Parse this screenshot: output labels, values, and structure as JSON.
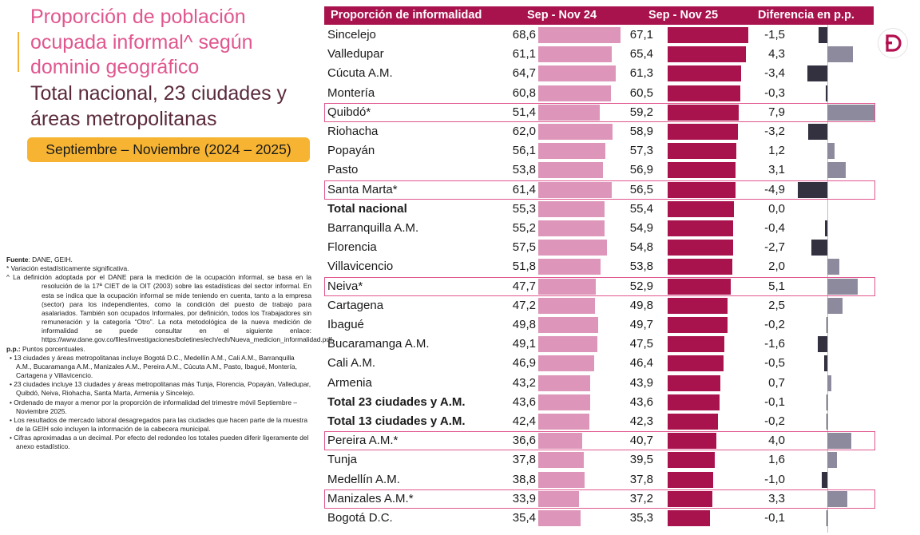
{
  "title": "Proporción de población ocupada informal^ según dominio geográfico",
  "subtitle": "Total nacional, 23 ciudades y áreas metropolitanas",
  "period": "Septiembre – Noviembre (2024 – 2025)",
  "colors": {
    "accent": "#a8124d",
    "bar_2024": "#dd96b9",
    "bar_2025": "#a8124d",
    "diff_positive": "#8c8a9c",
    "diff_negative": "#33313f",
    "title": "#e0578f",
    "period_bg": "#f6b432"
  },
  "logo_icon": "dane-logo-icon",
  "notes": {
    "source_label": "Fuente",
    "source_text": ": DANE, GEIH.",
    "significance": "* Variación estadísticamente significativa.",
    "definition": "^ La definición adoptada por el DANE para la medición de la ocupación informal, se basa en la resolución de la 17ª CIET de la OIT (2003) sobre las estadísticas del sector informal. En esta se indica que la ocupación informal se mide teniendo en cuenta, tanto a la empresa (sector) para los independientes, como la condición del puesto de trabajo para asalariados. También son ocupados Informales, por definición, todos los Trabajadores sin remuneración y la categoría “Otro”. La nota metodológica de la nueva medición de informalidad se puede consultar en el siguiente enlace: https://www.dane.gov.co/files/investigaciones/boletines/ech/ech/Nueva_medicion_informalidad.pdf",
    "pp_label": "p.p.:",
    "pp_text": " Puntos porcentuales.",
    "bullets": [
      "• 13 ciudades y áreas metropolitanas incluye Bogotá D.C., Medellín A.M., Cali A.M., Barranquilla A.M., Bucaramanga A.M., Manizales A.M., Pereira A.M., Cúcuta A.M., Pasto, Ibagué, Montería, Cartagena y Villavicencio.",
      "• 23 ciudades incluye 13 ciudades y áreas metropolitanas más Tunja, Florencia, Popayán, Valledupar, Quibdó, Neiva, Riohacha, Santa Marta, Armenia y Sincelejo.",
      "• Ordenado de mayor a menor por la proporción de informalidad del trimestre móvil Septiembre – Noviembre 2025.",
      "• Los resultados de mercado laboral desagregados para las ciudades que hacen parte de la muestra de la GEIH solo incluyen la información de la cabecera municipal.",
      "• Cifras aproximadas a un decimal. Por efecto del redondeo los totales pueden diferir ligeramente del anexo estadístico."
    ]
  },
  "chart_data": {
    "type": "bar",
    "headers": [
      "Proporción de informalidad",
      "Sep - Nov 24",
      "Sep - Nov 25",
      "Diferencia en p.p."
    ],
    "rows": [
      {
        "name": "Sincelejo",
        "v2024": "68,6",
        "v2025": "67,1",
        "diff": "-1,5",
        "bold": false,
        "significant": false
      },
      {
        "name": "Valledupar",
        "v2024": "61,1",
        "v2025": "65,4",
        "diff": "4,3",
        "bold": false,
        "significant": false
      },
      {
        "name": "Cúcuta A.M.",
        "v2024": "64,7",
        "v2025": "61,3",
        "diff": "-3,4",
        "bold": false,
        "significant": false
      },
      {
        "name": "Montería",
        "v2024": "60,8",
        "v2025": "60,5",
        "diff": "-0,3",
        "bold": false,
        "significant": false
      },
      {
        "name": "Quibdó*",
        "v2024": "51,4",
        "v2025": "59,2",
        "diff": "7,9",
        "bold": false,
        "significant": true
      },
      {
        "name": "Riohacha",
        "v2024": "62,0",
        "v2025": "58,9",
        "diff": "-3,2",
        "bold": false,
        "significant": false
      },
      {
        "name": "Popayán",
        "v2024": "56,1",
        "v2025": "57,3",
        "diff": "1,2",
        "bold": false,
        "significant": false
      },
      {
        "name": "Pasto",
        "v2024": "53,8",
        "v2025": "56,9",
        "diff": "3,1",
        "bold": false,
        "significant": false
      },
      {
        "name": "Santa Marta*",
        "v2024": "61,4",
        "v2025": "56,5",
        "diff": "-4,9",
        "bold": false,
        "significant": true
      },
      {
        "name": "Total nacional",
        "v2024": "55,3",
        "v2025": "55,4",
        "diff": "0,0",
        "bold": true,
        "significant": false
      },
      {
        "name": "Barranquilla A.M.",
        "v2024": "55,2",
        "v2025": "54,9",
        "diff": "-0,4",
        "bold": false,
        "significant": false
      },
      {
        "name": "Florencia",
        "v2024": "57,5",
        "v2025": "54,8",
        "diff": "-2,7",
        "bold": false,
        "significant": false
      },
      {
        "name": "Villavicencio",
        "v2024": "51,8",
        "v2025": "53,8",
        "diff": "2,0",
        "bold": false,
        "significant": false
      },
      {
        "name": "Neiva*",
        "v2024": "47,7",
        "v2025": "52,9",
        "diff": "5,1",
        "bold": false,
        "significant": true
      },
      {
        "name": "Cartagena",
        "v2024": "47,2",
        "v2025": "49,8",
        "diff": "2,5",
        "bold": false,
        "significant": false
      },
      {
        "name": "Ibagué",
        "v2024": "49,8",
        "v2025": "49,7",
        "diff": "-0,2",
        "bold": false,
        "significant": false
      },
      {
        "name": "Bucaramanga A.M.",
        "v2024": "49,1",
        "v2025": "47,5",
        "diff": "-1,6",
        "bold": false,
        "significant": false
      },
      {
        "name": "Cali A.M.",
        "v2024": "46,9",
        "v2025": "46,4",
        "diff": "-0,5",
        "bold": false,
        "significant": false
      },
      {
        "name": "Armenia",
        "v2024": "43,2",
        "v2025": "43,9",
        "diff": "0,7",
        "bold": false,
        "significant": false
      },
      {
        "name": "Total 23 ciudades y A.M.",
        "v2024": "43,6",
        "v2025": "43,6",
        "diff": "-0,1",
        "bold": true,
        "significant": false
      },
      {
        "name": "Total 13 ciudades y A.M.",
        "v2024": "42,4",
        "v2025": "42,3",
        "diff": "-0,2",
        "bold": true,
        "significant": false
      },
      {
        "name": "Pereira A.M.*",
        "v2024": "36,6",
        "v2025": "40,7",
        "diff": "4,0",
        "bold": false,
        "significant": true
      },
      {
        "name": "Tunja",
        "v2024": "37,8",
        "v2025": "39,5",
        "diff": "1,6",
        "bold": false,
        "significant": false
      },
      {
        "name": "Medellín A.M.",
        "v2024": "38,8",
        "v2025": "37,8",
        "diff": "-1,0",
        "bold": false,
        "significant": false
      },
      {
        "name": "Manizales A.M.*",
        "v2024": "33,9",
        "v2025": "37,2",
        "diff": "3,3",
        "bold": false,
        "significant": true
      },
      {
        "name": "Bogotá D.C.",
        "v2024": "35,4",
        "v2025": "35,3",
        "diff": "-0,1",
        "bold": false,
        "significant": false
      }
    ]
  }
}
